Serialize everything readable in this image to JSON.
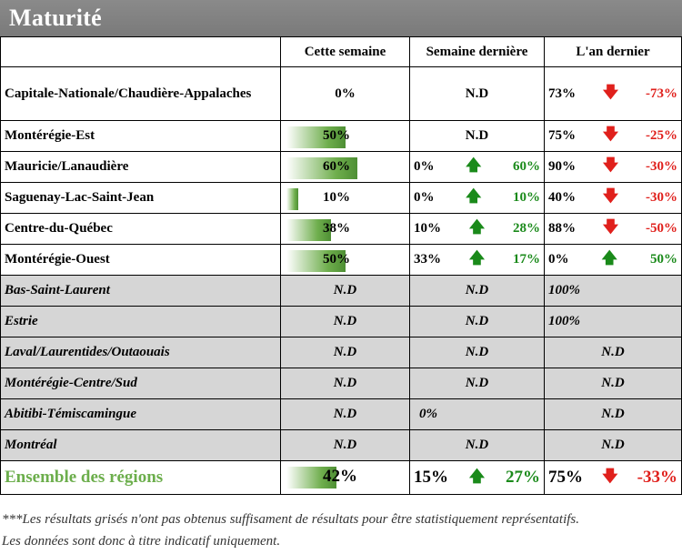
{
  "header": {
    "title": "Maturité"
  },
  "columns": [
    "Cette semaine",
    "Semaine dernière",
    "L'an dernier"
  ],
  "rows": [
    {
      "region": "Capitale-Nationale/Chaudière-Appalaches",
      "week": "0%",
      "week_level": 0,
      "last_week": "N.D",
      "last_week_delta": "",
      "last_year": "73%",
      "last_year_delta": "-73%",
      "ly_dir": "down"
    },
    {
      "region": "Montérégie-Est",
      "week": "50%",
      "week_level": 50,
      "last_week": "N.D",
      "last_week_delta": "",
      "last_year": "75%",
      "last_year_delta": "-25%",
      "ly_dir": "down"
    },
    {
      "region": "Mauricie/Lanaudière",
      "week": "60%",
      "week_level": 60,
      "last_week": "0%",
      "last_week_delta": "60%",
      "lw_dir": "up",
      "last_year": "90%",
      "last_year_delta": "-30%",
      "ly_dir": "down"
    },
    {
      "region": "Saguenay-Lac-Saint-Jean",
      "week": "10%",
      "week_level": 10,
      "last_week": "0%",
      "last_week_delta": "10%",
      "lw_dir": "up",
      "last_year": "40%",
      "last_year_delta": "-30%",
      "ly_dir": "down"
    },
    {
      "region": "Centre-du-Québec",
      "week": "38%",
      "week_level": 38,
      "last_week": "10%",
      "last_week_delta": "28%",
      "lw_dir": "up",
      "last_year": "88%",
      "last_year_delta": "-50%",
      "ly_dir": "down"
    },
    {
      "region": "Montérégie-Ouest",
      "week": "50%",
      "week_level": 50,
      "last_week": "33%",
      "last_week_delta": "17%",
      "lw_dir": "up",
      "last_year": "0%",
      "last_year_delta": "50%",
      "ly_dir": "up"
    }
  ],
  "grey_rows": [
    {
      "region": "Bas-Saint-Laurent",
      "week": "N.D",
      "last_week": "N.D",
      "last_year": "100%"
    },
    {
      "region": "Estrie",
      "week": "N.D",
      "last_week": "N.D",
      "last_year": "100%"
    },
    {
      "region": "Laval/Laurentides/Outaouais",
      "week": "N.D",
      "last_week": "N.D",
      "last_year": "N.D"
    },
    {
      "region": "Montérégie-Centre/Sud",
      "week": "N.D",
      "last_week": "N.D",
      "last_year": "N.D"
    },
    {
      "region": "Abitibi-Témiscamingue",
      "week": "N.D",
      "last_week": "0%",
      "last_year": "N.D"
    },
    {
      "region": "Montréal",
      "week": "N.D",
      "last_week": "N.D",
      "last_year": "N.D"
    }
  ],
  "total": {
    "region": "Ensemble des régions",
    "week": "42%",
    "week_level": 42,
    "last_week": "15%",
    "last_week_delta": "27%",
    "last_year": "75%",
    "last_year_delta": "-33%"
  },
  "footnote_1": "***Les résultats grisés n'ont pas obtenus suffisament de résultats pour être statistiquement représentatifs.",
  "footnote_2": "Les données sont donc à titre indicatif uniquement.",
  "colors": {
    "up": "#1a8a1a",
    "down": "#e0201c",
    "bar": "#6fae4d",
    "header": "#808080",
    "grey": "#d6d6d6"
  }
}
